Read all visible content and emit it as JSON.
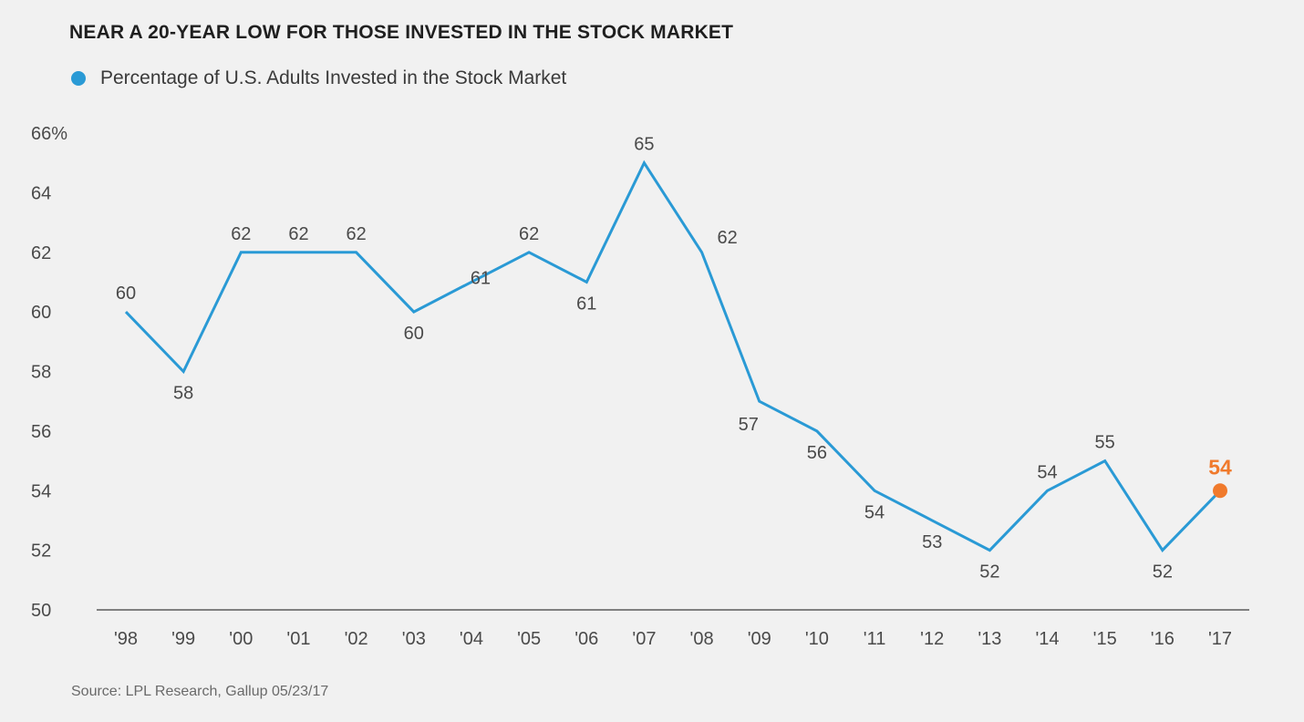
{
  "title": "NEAR A 20-YEAR LOW FOR THOSE INVESTED IN THE STOCK MARKET",
  "source": "Source: LPL Research, Gallup  05/23/17",
  "colors": {
    "series": "#2a9ad5",
    "highlight": "#f07a2c",
    "axis": "#5a5a5a",
    "text": "#4a4a4a"
  },
  "chart_data": {
    "type": "line",
    "title": "NEAR A 20-YEAR LOW FOR THOSE INVESTED IN THE STOCK MARKET",
    "categories": [
      "'98",
      "'99",
      "'00",
      "'01",
      "'02",
      "'03",
      "'04",
      "'05",
      "'06",
      "'07",
      "'08",
      "'09",
      "'10",
      "'11",
      "'12",
      "'13",
      "'14",
      "'15",
      "'16",
      "'17"
    ],
    "series": [
      {
        "name": "Percentage of U.S. Adults Invested in the Stock Market",
        "values": [
          60,
          58,
          62,
          62,
          62,
          60,
          61,
          62,
          61,
          65,
          62,
          57,
          56,
          54,
          53,
          52,
          54,
          55,
          52,
          54
        ]
      }
    ],
    "ylim": [
      50,
      66
    ],
    "yticks": [
      "50",
      "52",
      "54",
      "56",
      "58",
      "60",
      "62",
      "64",
      "66%"
    ],
    "data_labels": [
      "60",
      "58",
      "62",
      "62",
      "62",
      "60",
      "61",
      "62",
      "61",
      "65",
      "62",
      "57",
      "56",
      "54",
      "53",
      "52",
      "54",
      "55",
      "52",
      "54"
    ],
    "highlight_index": 19,
    "legend_position": "top-left",
    "grid": false
  }
}
